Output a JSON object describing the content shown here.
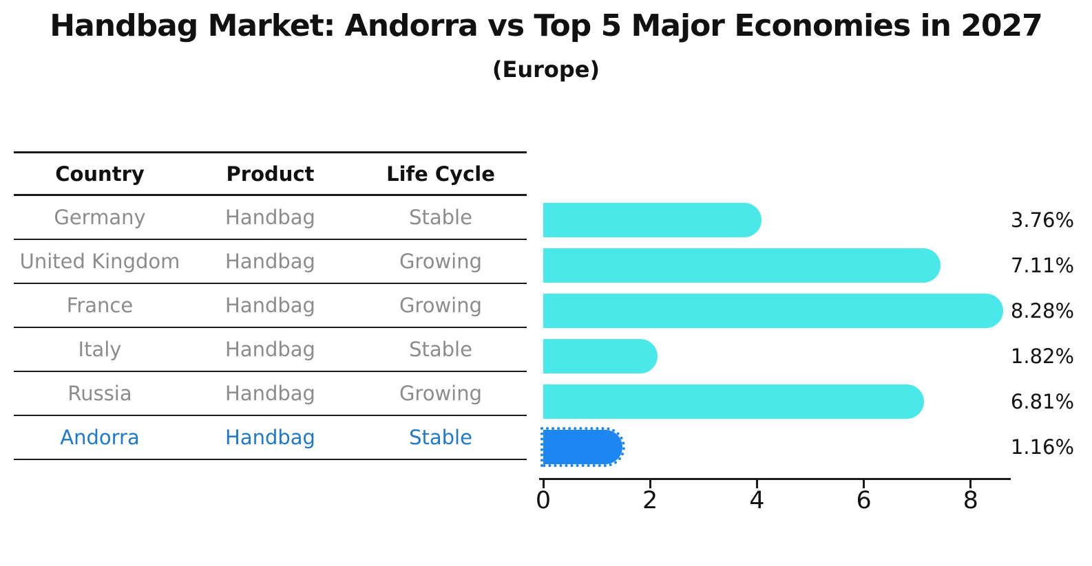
{
  "title": "Handbag Market: Andorra vs Top 5 Major Economies in 2027",
  "subtitle": "(Europe)",
  "table": {
    "headers": [
      "Country",
      "Product",
      "Life Cycle"
    ],
    "rows": [
      {
        "country": "Germany",
        "product": "Handbag",
        "life_cycle": "Stable",
        "highlighted": false
      },
      {
        "country": "United Kingdom",
        "product": "Handbag",
        "life_cycle": "Growing",
        "highlighted": false
      },
      {
        "country": "France",
        "product": "Handbag",
        "life_cycle": "Growing",
        "highlighted": false
      },
      {
        "country": "Italy",
        "product": "Handbag",
        "life_cycle": "Stable",
        "highlighted": false
      },
      {
        "country": "Russia",
        "product": "Handbag",
        "life_cycle": "Growing",
        "highlighted": false
      },
      {
        "country": "Andorra",
        "product": "Handbag",
        "life_cycle": "Stable",
        "highlighted": true
      }
    ]
  },
  "chart_data": {
    "type": "bar",
    "orientation": "horizontal",
    "title": "Handbag Market: Andorra vs Top 5 Major Economies in 2027",
    "subtitle": "(Europe)",
    "categories": [
      "Germany",
      "United Kingdom",
      "France",
      "Italy",
      "Russia",
      "Andorra"
    ],
    "values": [
      3.76,
      7.11,
      8.28,
      1.82,
      6.81,
      1.16
    ],
    "value_labels": [
      "3.76%",
      "7.11%",
      "8.28%",
      "1.82%",
      "6.81%",
      "1.16%"
    ],
    "x_ticks": [
      0,
      2,
      4,
      6,
      8
    ],
    "xlim": [
      0,
      8.7
    ],
    "grid": false,
    "legend": false,
    "bar_color": "#4ae8e8",
    "highlight_bar_color": "#1e86f0",
    "highlight_text_color": "#1e7ac9",
    "highlight_index": 5,
    "highlight_category": "Andorra"
  }
}
